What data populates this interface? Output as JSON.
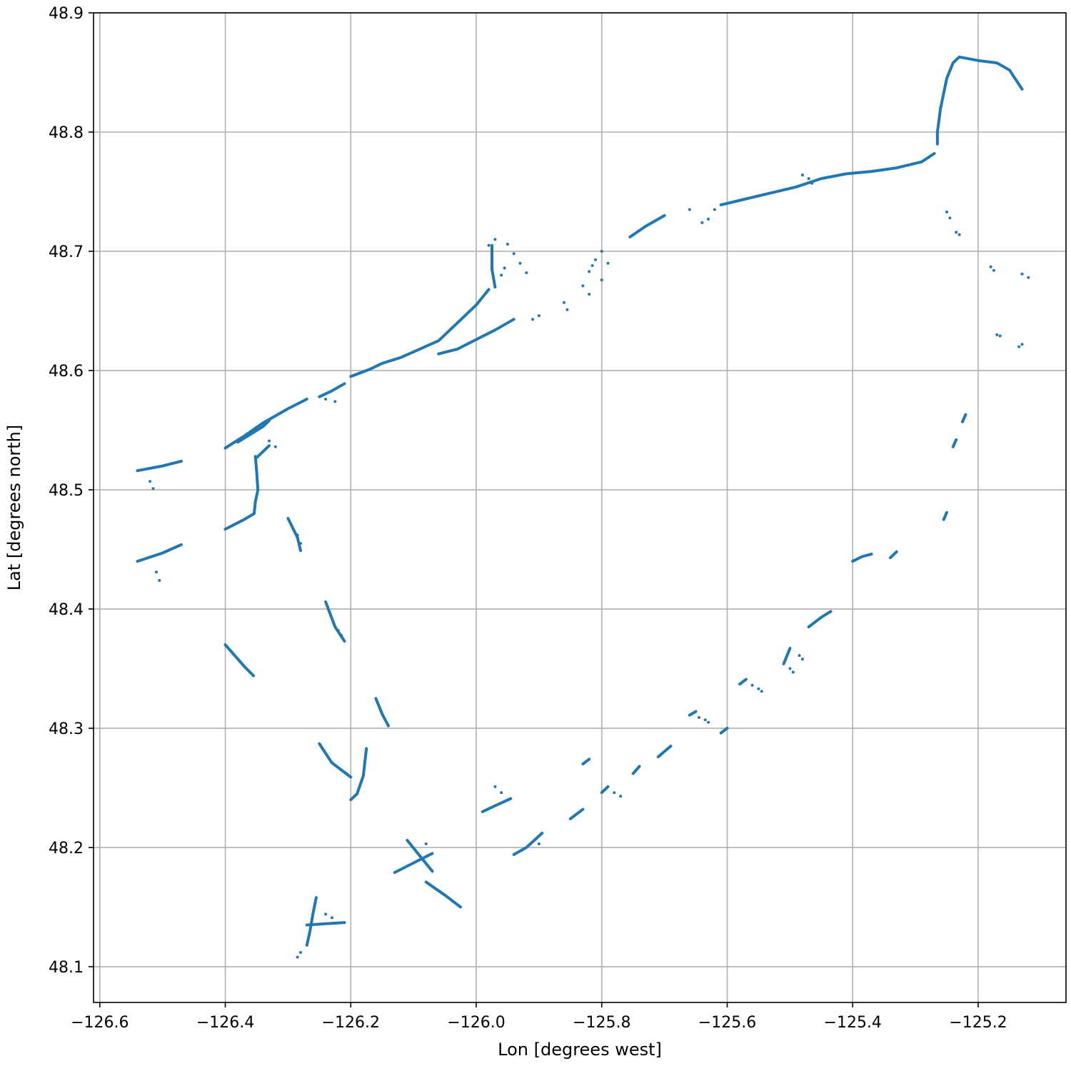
{
  "chart_data": {
    "type": "scatter",
    "title": "",
    "xlabel": "Lon [degrees west]",
    "ylabel": "Lat [degrees north]",
    "xlim": [
      -126.61,
      -125.06
    ],
    "ylim": [
      48.07,
      48.9
    ],
    "grid": true,
    "x_ticks": [
      -126.6,
      -126.4,
      -126.2,
      -126.0,
      -125.8,
      -125.6,
      -125.4,
      -125.2
    ],
    "x_tick_labels": [
      "−126.6",
      "−126.4",
      "−126.2",
      "−126.0",
      "−125.8",
      "−125.6",
      "−125.4",
      "−125.2"
    ],
    "y_ticks": [
      48.1,
      48.2,
      48.3,
      48.4,
      48.5,
      48.6,
      48.7,
      48.8,
      48.9
    ],
    "y_tick_labels": [
      "48.1",
      "48.2",
      "48.3",
      "48.4",
      "48.5",
      "48.6",
      "48.7",
      "48.8",
      "48.9"
    ],
    "marker_color": "#1f77b4",
    "series": [
      {
        "segments": [
          [
            [
              -126.54,
              48.516
            ],
            [
              -126.5,
              48.52
            ],
            [
              -126.47,
              48.524
            ]
          ],
          [
            [
              -126.54,
              48.44
            ],
            [
              -126.5,
              48.447
            ],
            [
              -126.47,
              48.454
            ]
          ],
          [
            [
              -126.4,
              48.467
            ],
            [
              -126.37,
              48.475
            ],
            [
              -126.354,
              48.48
            ],
            [
              -126.352,
              48.49
            ],
            [
              -126.348,
              48.5
            ],
            [
              -126.35,
              48.515
            ],
            [
              -126.352,
              48.528
            ]
          ],
          [
            [
              -126.4,
              48.535
            ],
            [
              -126.37,
              48.545
            ],
            [
              -126.34,
              48.556
            ],
            [
              -126.3,
              48.568
            ],
            [
              -126.27,
              48.576
            ]
          ],
          [
            [
              -126.38,
              48.54
            ],
            [
              -126.34,
              48.553
            ],
            [
              -126.33,
              48.558
            ]
          ],
          [
            [
              -126.35,
              48.527
            ],
            [
              -126.33,
              48.537
            ]
          ],
          [
            [
              -126.25,
              48.578
            ],
            [
              -126.23,
              48.583
            ],
            [
              -126.21,
              48.589
            ]
          ],
          [
            [
              -126.3,
              48.476
            ],
            [
              -126.285,
              48.46
            ],
            [
              -126.28,
              48.449
            ]
          ],
          [
            [
              -126.24,
              48.406
            ],
            [
              -126.225,
              48.385
            ],
            [
              -126.21,
              48.373
            ]
          ],
          [
            [
              -126.4,
              48.37
            ],
            [
              -126.37,
              48.352
            ],
            [
              -126.355,
              48.344
            ]
          ],
          [
            [
              -126.16,
              48.325
            ],
            [
              -126.15,
              48.312
            ],
            [
              -126.14,
              48.302
            ]
          ],
          [
            [
              -126.25,
              48.287
            ],
            [
              -126.23,
              48.271
            ],
            [
              -126.2,
              48.259
            ]
          ],
          [
            [
              -126.175,
              48.283
            ],
            [
              -126.18,
              48.26
            ],
            [
              -126.19,
              48.245
            ],
            [
              -126.2,
              48.24
            ]
          ],
          [
            [
              -126.13,
              48.179
            ],
            [
              -126.1,
              48.187
            ],
            [
              -126.07,
              48.195
            ]
          ],
          [
            [
              -126.11,
              48.206
            ],
            [
              -126.09,
              48.193
            ],
            [
              -126.07,
              48.18
            ]
          ],
          [
            [
              -126.08,
              48.171
            ],
            [
              -126.05,
              48.16
            ],
            [
              -126.025,
              48.15
            ]
          ],
          [
            [
              -126.255,
              48.158
            ],
            [
              -126.26,
              48.145
            ],
            [
              -126.265,
              48.13
            ],
            [
              -126.27,
              48.118
            ]
          ],
          [
            [
              -126.27,
              48.135
            ],
            [
              -126.24,
              48.136
            ],
            [
              -126.21,
              48.137
            ]
          ],
          [
            [
              -125.99,
              48.23
            ],
            [
              -125.97,
              48.235
            ],
            [
              -125.945,
              48.241
            ]
          ],
          [
            [
              -125.94,
              48.194
            ],
            [
              -125.92,
              48.2
            ],
            [
              -125.895,
              48.212
            ]
          ],
          [
            [
              -126.2,
              48.595
            ],
            [
              -126.17,
              48.601
            ],
            [
              -126.15,
              48.606
            ],
            [
              -126.12,
              48.611
            ],
            [
              -126.09,
              48.618
            ],
            [
              -126.06,
              48.625
            ],
            [
              -126.03,
              48.64
            ],
            [
              -126.0,
              48.655
            ],
            [
              -125.98,
              48.668
            ]
          ],
          [
            [
              -126.06,
              48.614
            ],
            [
              -126.03,
              48.618
            ],
            [
              -126.0,
              48.626
            ],
            [
              -125.97,
              48.634
            ],
            [
              -125.94,
              48.643
            ]
          ],
          [
            [
              -125.975,
              48.705
            ],
            [
              -125.975,
              48.685
            ],
            [
              -125.97,
              48.67
            ]
          ],
          [
            [
              -125.755,
              48.712
            ],
            [
              -125.73,
              48.721
            ],
            [
              -125.7,
              48.73
            ]
          ],
          [
            [
              -125.61,
              48.739
            ],
            [
              -125.57,
              48.744
            ],
            [
              -125.53,
              48.749
            ],
            [
              -125.49,
              48.754
            ],
            [
              -125.45,
              48.761
            ],
            [
              -125.41,
              48.765
            ],
            [
              -125.37,
              48.767
            ],
            [
              -125.33,
              48.77
            ],
            [
              -125.29,
              48.775
            ],
            [
              -125.27,
              48.782
            ]
          ],
          [
            [
              -125.265,
              48.79
            ],
            [
              -125.265,
              48.8
            ],
            [
              -125.26,
              48.82
            ],
            [
              -125.25,
              48.845
            ],
            [
              -125.24,
              48.858
            ],
            [
              -125.23,
              48.863
            ],
            [
              -125.2,
              48.86
            ],
            [
              -125.17,
              48.858
            ],
            [
              -125.15,
              48.852
            ],
            [
              -125.13,
              48.836
            ]
          ],
          [
            [
              -125.4,
              48.44
            ],
            [
              -125.385,
              48.444
            ],
            [
              -125.37,
              48.446
            ]
          ],
          [
            [
              -125.34,
              48.443
            ],
            [
              -125.33,
              48.448
            ]
          ],
          [
            [
              -125.47,
              48.385
            ],
            [
              -125.45,
              48.393
            ],
            [
              -125.435,
              48.398
            ]
          ],
          [
            [
              -125.51,
              48.354
            ],
            [
              -125.5,
              48.367
            ]
          ],
          [
            [
              -125.58,
              48.337
            ],
            [
              -125.57,
              48.341
            ]
          ],
          [
            [
              -125.66,
              48.311
            ],
            [
              -125.65,
              48.314
            ]
          ],
          [
            [
              -125.61,
              48.296
            ],
            [
              -125.6,
              48.3
            ]
          ],
          [
            [
              -125.71,
              48.276
            ],
            [
              -125.69,
              48.285
            ]
          ],
          [
            [
              -125.75,
              48.262
            ],
            [
              -125.74,
              48.268
            ]
          ],
          [
            [
              -125.8,
              48.246
            ],
            [
              -125.79,
              48.251
            ]
          ],
          [
            [
              -125.85,
              48.224
            ],
            [
              -125.83,
              48.232
            ]
          ],
          [
            [
              -125.83,
              48.27
            ],
            [
              -125.82,
              48.274
            ]
          ],
          [
            [
              -125.255,
              48.475
            ],
            [
              -125.25,
              48.481
            ]
          ],
          [
            [
              -125.24,
              48.536
            ],
            [
              -125.235,
              48.542
            ]
          ],
          [
            [
              -125.225,
              48.557
            ],
            [
              -125.22,
              48.563
            ]
          ]
        ],
        "points": [
          [
            -126.52,
            48.507
          ],
          [
            -126.515,
            48.501
          ],
          [
            -126.51,
            48.431
          ],
          [
            -126.505,
            48.424
          ],
          [
            -126.33,
            48.541
          ],
          [
            -126.32,
            48.536
          ],
          [
            -126.285,
            48.462
          ],
          [
            -126.28,
            48.455
          ],
          [
            -126.24,
            48.576
          ],
          [
            -126.225,
            48.574
          ],
          [
            -126.22,
            48.382
          ],
          [
            -126.215,
            48.378
          ],
          [
            -126.08,
            48.203
          ],
          [
            -125.97,
            48.251
          ],
          [
            -125.96,
            48.246
          ],
          [
            -125.9,
            48.203
          ],
          [
            -126.24,
            48.144
          ],
          [
            -126.23,
            48.141
          ],
          [
            -126.285,
            48.108
          ],
          [
            -126.28,
            48.112
          ],
          [
            -125.98,
            48.705
          ],
          [
            -125.97,
            48.71
          ],
          [
            -125.95,
            48.706
          ],
          [
            -125.94,
            48.698
          ],
          [
            -125.93,
            48.69
          ],
          [
            -125.92,
            48.682
          ],
          [
            -125.96,
            48.68
          ],
          [
            -125.955,
            48.686
          ],
          [
            -125.9,
            48.646
          ],
          [
            -125.91,
            48.643
          ],
          [
            -125.86,
            48.657
          ],
          [
            -125.855,
            48.651
          ],
          [
            -125.83,
            48.671
          ],
          [
            -125.82,
            48.664
          ],
          [
            -125.81,
            48.693
          ],
          [
            -125.8,
            48.7
          ],
          [
            -125.8,
            48.676
          ],
          [
            -125.79,
            48.69
          ],
          [
            -125.82,
            48.683
          ],
          [
            -125.815,
            48.688
          ],
          [
            -125.66,
            48.735
          ],
          [
            -125.64,
            48.724
          ],
          [
            -125.63,
            48.727
          ],
          [
            -125.62,
            48.735
          ],
          [
            -125.48,
            48.764
          ],
          [
            -125.47,
            48.761
          ],
          [
            -125.465,
            48.757
          ],
          [
            -125.25,
            48.733
          ],
          [
            -125.245,
            48.728
          ],
          [
            -125.235,
            48.716
          ],
          [
            -125.23,
            48.714
          ],
          [
            -125.18,
            48.687
          ],
          [
            -125.175,
            48.684
          ],
          [
            -125.17,
            48.63
          ],
          [
            -125.165,
            48.629
          ],
          [
            -125.135,
            48.62
          ],
          [
            -125.13,
            48.622
          ],
          [
            -125.13,
            48.681
          ],
          [
            -125.12,
            48.678
          ],
          [
            -125.5,
            48.35
          ],
          [
            -125.495,
            48.347
          ],
          [
            -125.485,
            48.361
          ],
          [
            -125.48,
            48.358
          ],
          [
            -125.56,
            48.336
          ],
          [
            -125.55,
            48.333
          ],
          [
            -125.545,
            48.331
          ],
          [
            -125.645,
            48.309
          ],
          [
            -125.635,
            48.307
          ],
          [
            -125.63,
            48.305
          ],
          [
            -125.78,
            48.246
          ],
          [
            -125.77,
            48.243
          ]
        ]
      }
    ]
  }
}
